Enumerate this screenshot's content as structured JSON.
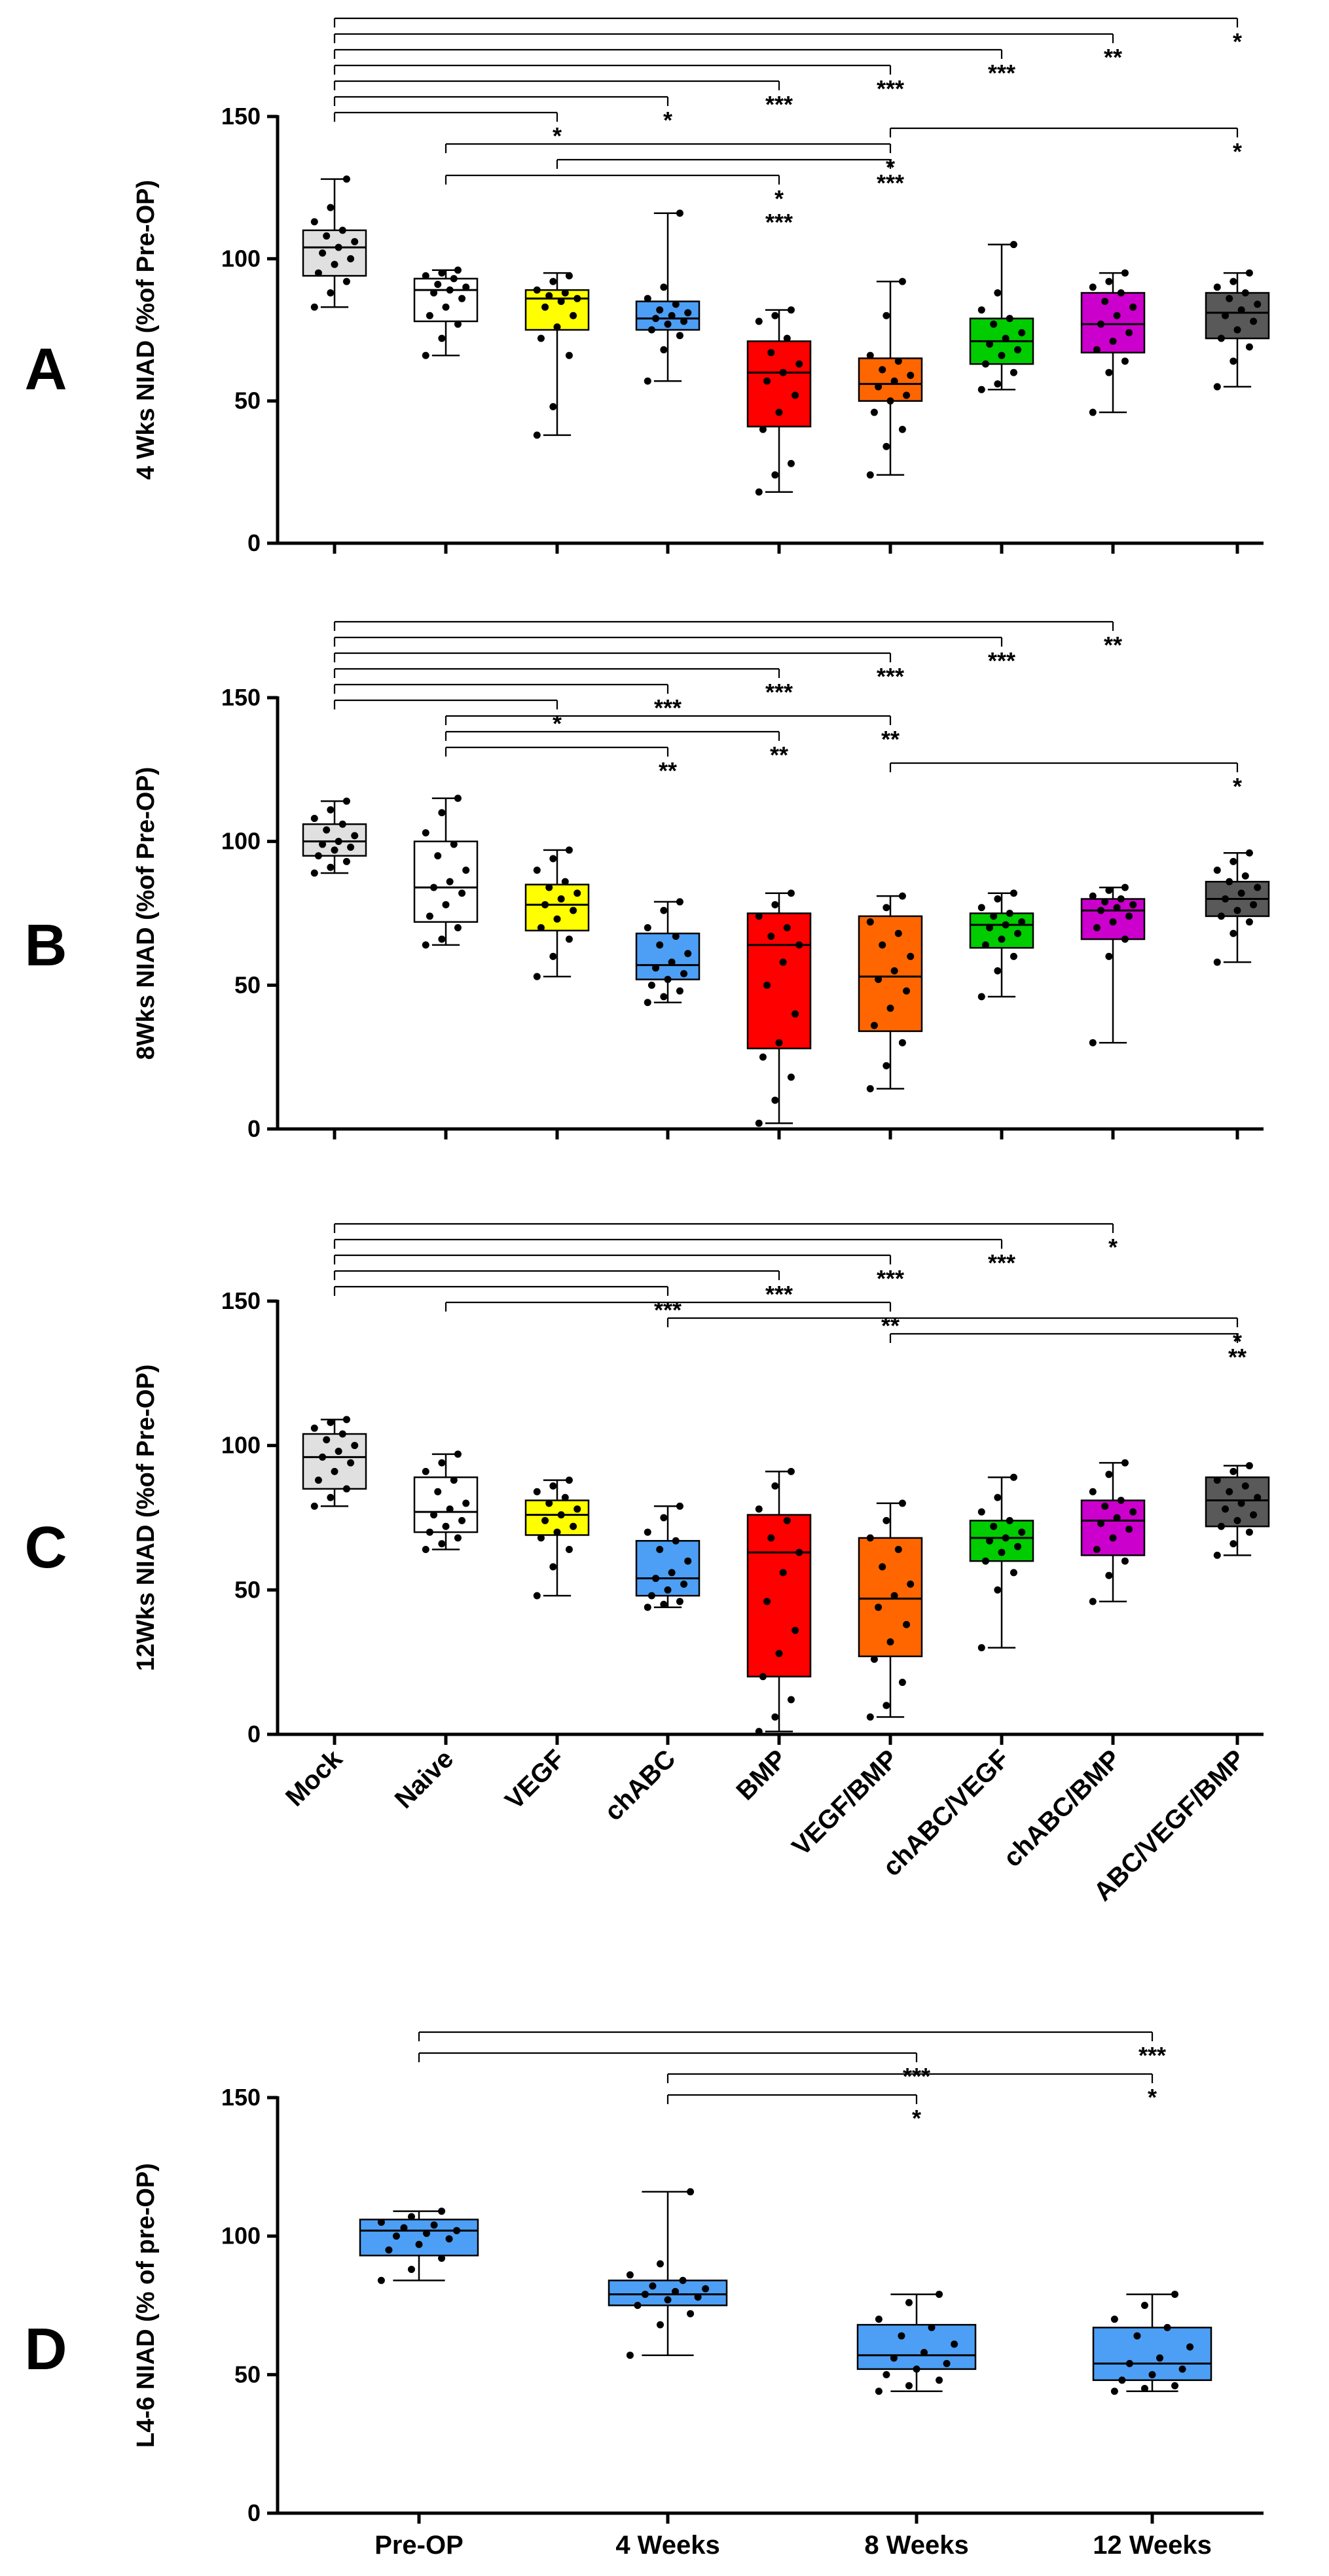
{
  "chart_data": [
    {
      "type": "box",
      "panel_label": "A",
      "ylabel": "4 Wks NIAD (%of Pre-OP)",
      "ylim": [
        0,
        150
      ],
      "yticks": [
        "0",
        "50",
        "100",
        "150"
      ],
      "categories": [
        "Mock",
        "Naive",
        "VEGF",
        "chABC",
        "BMP",
        "VEGF/BMP",
        "chABC/VEGF",
        "chABC/BMP",
        "ABC/VEGF/BMP"
      ],
      "colors": [
        "#e0e0e0",
        "#ffffff",
        "#ffff00",
        "#4d9ff5",
        "#ff0000",
        "#ff6600",
        "#00cc00",
        "#cc00cc",
        "#595959"
      ],
      "boxes": [
        {
          "min": 83,
          "q1": 94,
          "median": 104,
          "q3": 110,
          "max": 128
        },
        {
          "min": 66,
          "q1": 78,
          "median": 89,
          "q3": 93,
          "max": 96
        },
        {
          "min": 38,
          "q1": 75,
          "median": 86,
          "q3": 89,
          "max": 95
        },
        {
          "min": 57,
          "q1": 75,
          "median": 79,
          "q3": 85,
          "max": 116
        },
        {
          "min": 18,
          "q1": 41,
          "median": 60,
          "q3": 71,
          "max": 82
        },
        {
          "min": 24,
          "q1": 50,
          "median": 56,
          "q3": 65,
          "max": 92
        },
        {
          "min": 54,
          "q1": 63,
          "median": 71,
          "q3": 79,
          "max": 105
        },
        {
          "min": 46,
          "q1": 67,
          "median": 77,
          "q3": 88,
          "max": 95
        },
        {
          "min": 55,
          "q1": 72,
          "median": 81,
          "q3": 88,
          "max": 95
        }
      ],
      "points": [
        [
          83,
          88,
          92,
          95,
          98,
          100,
          102,
          104,
          106,
          108,
          110,
          113,
          118,
          128
        ],
        [
          66,
          72,
          77,
          80,
          83,
          86,
          88,
          89,
          90,
          91,
          93,
          94,
          95,
          96
        ],
        [
          38,
          48,
          66,
          72,
          76,
          80,
          83,
          85,
          86,
          87,
          88,
          89,
          92,
          94
        ],
        [
          57,
          68,
          73,
          75,
          77,
          78,
          79,
          80,
          81,
          82,
          84,
          86,
          90,
          116
        ],
        [
          18,
          24,
          28,
          40,
          46,
          52,
          57,
          60,
          63,
          67,
          72,
          78,
          80,
          82
        ],
        [
          24,
          34,
          40,
          46,
          50,
          52,
          55,
          57,
          59,
          61,
          64,
          66,
          80,
          92
        ],
        [
          54,
          56,
          60,
          63,
          66,
          68,
          70,
          72,
          74,
          77,
          79,
          82,
          88,
          105
        ],
        [
          46,
          60,
          64,
          68,
          71,
          74,
          77,
          80,
          83,
          85,
          88,
          90,
          92,
          95
        ],
        [
          55,
          64,
          69,
          72,
          75,
          78,
          80,
          82,
          84,
          86,
          88,
          90,
          92,
          95
        ]
      ],
      "brackets": [
        {
          "from": 0,
          "to": 8,
          "label": "*"
        },
        {
          "from": 0,
          "to": 7,
          "label": "**"
        },
        {
          "from": 0,
          "to": 6,
          "label": "***"
        },
        {
          "from": 0,
          "to": 5,
          "label": "***"
        },
        {
          "from": 0,
          "to": 4,
          "label": "***"
        },
        {
          "from": 0,
          "to": 3,
          "label": "*"
        },
        {
          "from": 0,
          "to": 2,
          "label": "*"
        },
        {
          "from": 5,
          "to": 8,
          "label": "*"
        },
        {
          "from": 1,
          "to": 5,
          "label": "*",
          "label_at": "from"
        },
        {
          "from": 2,
          "to": 5,
          "label": "***",
          "label_at": "from"
        },
        {
          "from": 1,
          "to": 4,
          "label": "*",
          "label_at": "between_from",
          "second_label": "***"
        }
      ]
    },
    {
      "type": "box",
      "panel_label": "B",
      "ylabel": "8Wks NIAD (%of Pre-OP)",
      "ylim": [
        0,
        150
      ],
      "yticks": [
        "0",
        "50",
        "100",
        "150"
      ],
      "categories": [
        "Mock",
        "Naive",
        "VEGF",
        "chABC",
        "BMP",
        "VEGF/BMP",
        "chABC/VEGF",
        "chABC/BMP",
        "ABC/VEGF/BMP"
      ],
      "colors": [
        "#e0e0e0",
        "#ffffff",
        "#ffff00",
        "#4d9ff5",
        "#ff0000",
        "#ff6600",
        "#00cc00",
        "#cc00cc",
        "#595959"
      ],
      "boxes": [
        {
          "min": 89,
          "q1": 95,
          "median": 100,
          "q3": 106,
          "max": 114
        },
        {
          "min": 64,
          "q1": 72,
          "median": 84,
          "q3": 100,
          "max": 115
        },
        {
          "min": 53,
          "q1": 69,
          "median": 78,
          "q3": 85,
          "max": 97
        },
        {
          "min": 44,
          "q1": 52,
          "median": 57,
          "q3": 68,
          "max": 79
        },
        {
          "min": 2,
          "q1": 28,
          "median": 64,
          "q3": 75,
          "max": 82
        },
        {
          "min": 14,
          "q1": 34,
          "median": 53,
          "q3": 74,
          "max": 81
        },
        {
          "min": 46,
          "q1": 63,
          "median": 71,
          "q3": 75,
          "max": 82
        },
        {
          "min": 30,
          "q1": 66,
          "median": 76,
          "q3": 80,
          "max": 84
        },
        {
          "min": 58,
          "q1": 74,
          "median": 80,
          "q3": 86,
          "max": 96
        }
      ],
      "points": [
        [
          89,
          91,
          93,
          95,
          97,
          98,
          99,
          100,
          102,
          104,
          106,
          108,
          111,
          114
        ],
        [
          64,
          66,
          70,
          74,
          78,
          82,
          84,
          86,
          90,
          95,
          99,
          103,
          110,
          115
        ],
        [
          53,
          60,
          66,
          70,
          73,
          76,
          78,
          80,
          82,
          84,
          86,
          90,
          94,
          97
        ],
        [
          44,
          46,
          48,
          50,
          52,
          54,
          56,
          58,
          61,
          64,
          67,
          70,
          76,
          79
        ],
        [
          2,
          10,
          18,
          25,
          30,
          40,
          50,
          58,
          64,
          67,
          70,
          74,
          78,
          82
        ],
        [
          14,
          22,
          30,
          36,
          42,
          48,
          52,
          55,
          60,
          64,
          68,
          72,
          77,
          81
        ],
        [
          46,
          55,
          60,
          64,
          66,
          68,
          70,
          71,
          72,
          74,
          75,
          77,
          80,
          82
        ],
        [
          30,
          60,
          66,
          70,
          72,
          74,
          76,
          77,
          78,
          79,
          80,
          81,
          83,
          84
        ],
        [
          58,
          68,
          72,
          74,
          76,
          78,
          80,
          82,
          84,
          86,
          88,
          90,
          93,
          96
        ]
      ],
      "brackets": [
        {
          "from": 0,
          "to": 7,
          "label": "**"
        },
        {
          "from": 0,
          "to": 6,
          "label": "***"
        },
        {
          "from": 0,
          "to": 5,
          "label": "***"
        },
        {
          "from": 0,
          "to": 4,
          "label": "***"
        },
        {
          "from": 0,
          "to": 3,
          "label": "***"
        },
        {
          "from": 0,
          "to": 2,
          "label": "*"
        },
        {
          "from": 1,
          "to": 5,
          "label": "**"
        },
        {
          "from": 1,
          "to": 4,
          "label": "**"
        },
        {
          "from": 1,
          "to": 3,
          "label": "**"
        },
        {
          "from": 5,
          "to": 8,
          "label": "*",
          "label_at": "from"
        }
      ]
    },
    {
      "type": "box",
      "panel_label": "C",
      "ylabel": "12Wks NIAD (%of Pre-OP)",
      "ylim": [
        0,
        150
      ],
      "yticks": [
        "0",
        "50",
        "100",
        "150"
      ],
      "categories": [
        "Mock",
        "Naive",
        "VEGF",
        "chABC",
        "BMP",
        "VEGF/BMP",
        "chABC/VEGF",
        "chABC/BMP",
        "ABC/VEGF/BMP"
      ],
      "colors": [
        "#e0e0e0",
        "#ffffff",
        "#ffff00",
        "#4d9ff5",
        "#ff0000",
        "#ff6600",
        "#00cc00",
        "#cc00cc",
        "#595959"
      ],
      "boxes": [
        {
          "min": 79,
          "q1": 85,
          "median": 96,
          "q3": 104,
          "max": 109
        },
        {
          "min": 64,
          "q1": 70,
          "median": 77,
          "q3": 89,
          "max": 97
        },
        {
          "min": 48,
          "q1": 69,
          "median": 76,
          "q3": 81,
          "max": 88
        },
        {
          "min": 44,
          "q1": 48,
          "median": 54,
          "q3": 67,
          "max": 79
        },
        {
          "min": 1,
          "q1": 20,
          "median": 63,
          "q3": 76,
          "max": 91
        },
        {
          "min": 6,
          "q1": 27,
          "median": 47,
          "q3": 68,
          "max": 80
        },
        {
          "min": 30,
          "q1": 60,
          "median": 68,
          "q3": 74,
          "max": 89
        },
        {
          "min": 46,
          "q1": 62,
          "median": 74,
          "q3": 81,
          "max": 94
        },
        {
          "min": 62,
          "q1": 72,
          "median": 81,
          "q3": 89,
          "max": 93
        }
      ],
      "points": [
        [
          79,
          82,
          85,
          88,
          91,
          94,
          96,
          98,
          100,
          102,
          104,
          106,
          108,
          109
        ],
        [
          64,
          66,
          68,
          70,
          72,
          74,
          76,
          78,
          80,
          84,
          88,
          91,
          94,
          97
        ],
        [
          48,
          58,
          64,
          68,
          70,
          72,
          74,
          76,
          78,
          80,
          82,
          84,
          86,
          88
        ],
        [
          44,
          45,
          46,
          48,
          50,
          52,
          54,
          56,
          60,
          64,
          67,
          70,
          75,
          79
        ],
        [
          1,
          6,
          12,
          20,
          28,
          36,
          46,
          56,
          63,
          68,
          74,
          78,
          86,
          91
        ],
        [
          6,
          10,
          18,
          26,
          32,
          38,
          44,
          48,
          52,
          58,
          64,
          68,
          74,
          80
        ],
        [
          30,
          50,
          56,
          60,
          63,
          65,
          67,
          68,
          70,
          72,
          74,
          77,
          82,
          89
        ],
        [
          46,
          55,
          60,
          64,
          68,
          71,
          73,
          75,
          77,
          79,
          81,
          84,
          90,
          94
        ],
        [
          62,
          66,
          70,
          72,
          74,
          76,
          78,
          80,
          82,
          84,
          86,
          88,
          91,
          93
        ]
      ],
      "brackets": [
        {
          "from": 0,
          "to": 7,
          "label": "*"
        },
        {
          "from": 0,
          "to": 6,
          "label": "***"
        },
        {
          "from": 0,
          "to": 5,
          "label": "***"
        },
        {
          "from": 0,
          "to": 4,
          "label": "***"
        },
        {
          "from": 0,
          "to": 3,
          "label": "***"
        },
        {
          "from": 1,
          "to": 5,
          "label": "**",
          "label_at": "from"
        },
        {
          "from": 3,
          "to": 8,
          "label": "*",
          "label_at": "from"
        },
        {
          "from": 5,
          "to": 8,
          "label": "**",
          "label_at": "from"
        }
      ]
    },
    {
      "type": "box",
      "panel_label": "D",
      "ylabel": "L4-6 NIAD (% of pre-OP)",
      "ylim": [
        0,
        150
      ],
      "yticks": [
        "0",
        "50",
        "100",
        "150"
      ],
      "categories": [
        "Pre-OP",
        "4 Weeks",
        "8 Weeks",
        "12 Weeks"
      ],
      "colors": [
        "#4d9ff5",
        "#4d9ff5",
        "#4d9ff5",
        "#4d9ff5"
      ],
      "boxes": [
        {
          "min": 84,
          "q1": 93,
          "median": 102,
          "q3": 106,
          "max": 109
        },
        {
          "min": 57,
          "q1": 75,
          "median": 79,
          "q3": 84,
          "max": 116
        },
        {
          "min": 44,
          "q1": 52,
          "median": 57,
          "q3": 68,
          "max": 79
        },
        {
          "min": 44,
          "q1": 48,
          "median": 54,
          "q3": 67,
          "max": 79
        }
      ],
      "points": [
        [
          84,
          88,
          92,
          95,
          97,
          99,
          100,
          101,
          102,
          103,
          104,
          105,
          107,
          109
        ],
        [
          57,
          68,
          72,
          75,
          77,
          78,
          79,
          80,
          81,
          82,
          84,
          86,
          90,
          116
        ],
        [
          44,
          46,
          48,
          50,
          52,
          54,
          56,
          58,
          61,
          64,
          67,
          70,
          76,
          79
        ],
        [
          44,
          45,
          46,
          48,
          50,
          52,
          54,
          56,
          60,
          64,
          67,
          70,
          75,
          79
        ]
      ],
      "brackets": [
        {
          "from": 0,
          "to": 3,
          "label": "***"
        },
        {
          "from": 0,
          "to": 2,
          "label": "***"
        },
        {
          "from": 1,
          "to": 3,
          "label": "*"
        },
        {
          "from": 1,
          "to": 2,
          "label": "*"
        }
      ]
    }
  ]
}
